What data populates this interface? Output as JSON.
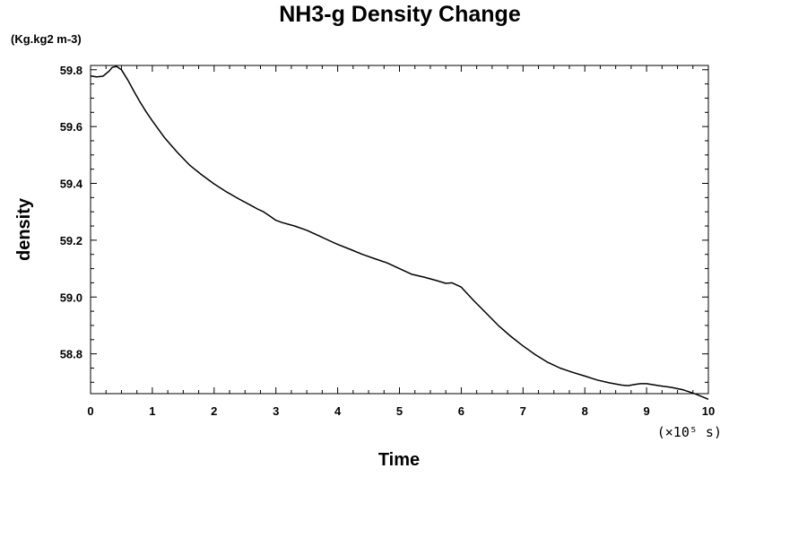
{
  "chart_data": {
    "type": "line",
    "title": "NH3-g Density Change",
    "ylabel": "density",
    "yunit": "(Kg.kg2 m-3)",
    "xlabel": "Time",
    "xscale_note": "(×10⁵ s)",
    "xlim": [
      0,
      10
    ],
    "ylim": [
      58.66,
      59.815
    ],
    "x_ticks": [
      "0",
      "1",
      "2",
      "3",
      "4",
      "5",
      "6",
      "7",
      "8",
      "9",
      "10"
    ],
    "y_ticks": [
      "58.8",
      "59.0",
      "59.2",
      "59.4",
      "59.6",
      "59.8"
    ],
    "grid": false,
    "series": [
      {
        "x": [
          0,
          0.1,
          0.2,
          0.3,
          0.35,
          0.42,
          0.5,
          0.6,
          0.7,
          0.8,
          0.9,
          1.0,
          1.2,
          1.4,
          1.6,
          1.8,
          2.0,
          2.2,
          2.4,
          2.6,
          2.7,
          2.8,
          2.9,
          3.0,
          3.1,
          3.3,
          3.5,
          3.7,
          3.9,
          4.0,
          4.2,
          4.4,
          4.6,
          4.8,
          5.0,
          5.2,
          5.4,
          5.6,
          5.75,
          5.85,
          6.0,
          6.2,
          6.4,
          6.6,
          6.8,
          7.0,
          7.2,
          7.4,
          7.6,
          7.8,
          8.0,
          8.2,
          8.4,
          8.6,
          8.7,
          8.8,
          8.9,
          9.0,
          9.2,
          9.4,
          9.6,
          9.8,
          10.0
        ],
        "y": [
          59.778,
          59.775,
          59.777,
          59.795,
          59.808,
          59.812,
          59.8,
          59.765,
          59.725,
          59.687,
          59.652,
          59.62,
          59.56,
          59.51,
          59.465,
          59.43,
          59.398,
          59.37,
          59.345,
          59.322,
          59.31,
          59.3,
          59.285,
          59.27,
          59.262,
          59.25,
          59.235,
          59.215,
          59.195,
          59.185,
          59.168,
          59.15,
          59.135,
          59.12,
          59.1,
          59.08,
          59.07,
          59.058,
          59.048,
          59.05,
          59.035,
          58.988,
          58.944,
          58.9,
          58.862,
          58.828,
          58.797,
          58.77,
          58.75,
          58.735,
          58.722,
          58.708,
          58.698,
          58.69,
          58.688,
          58.692,
          58.695,
          58.695,
          58.688,
          58.682,
          58.673,
          58.658,
          58.64
        ]
      }
    ]
  }
}
